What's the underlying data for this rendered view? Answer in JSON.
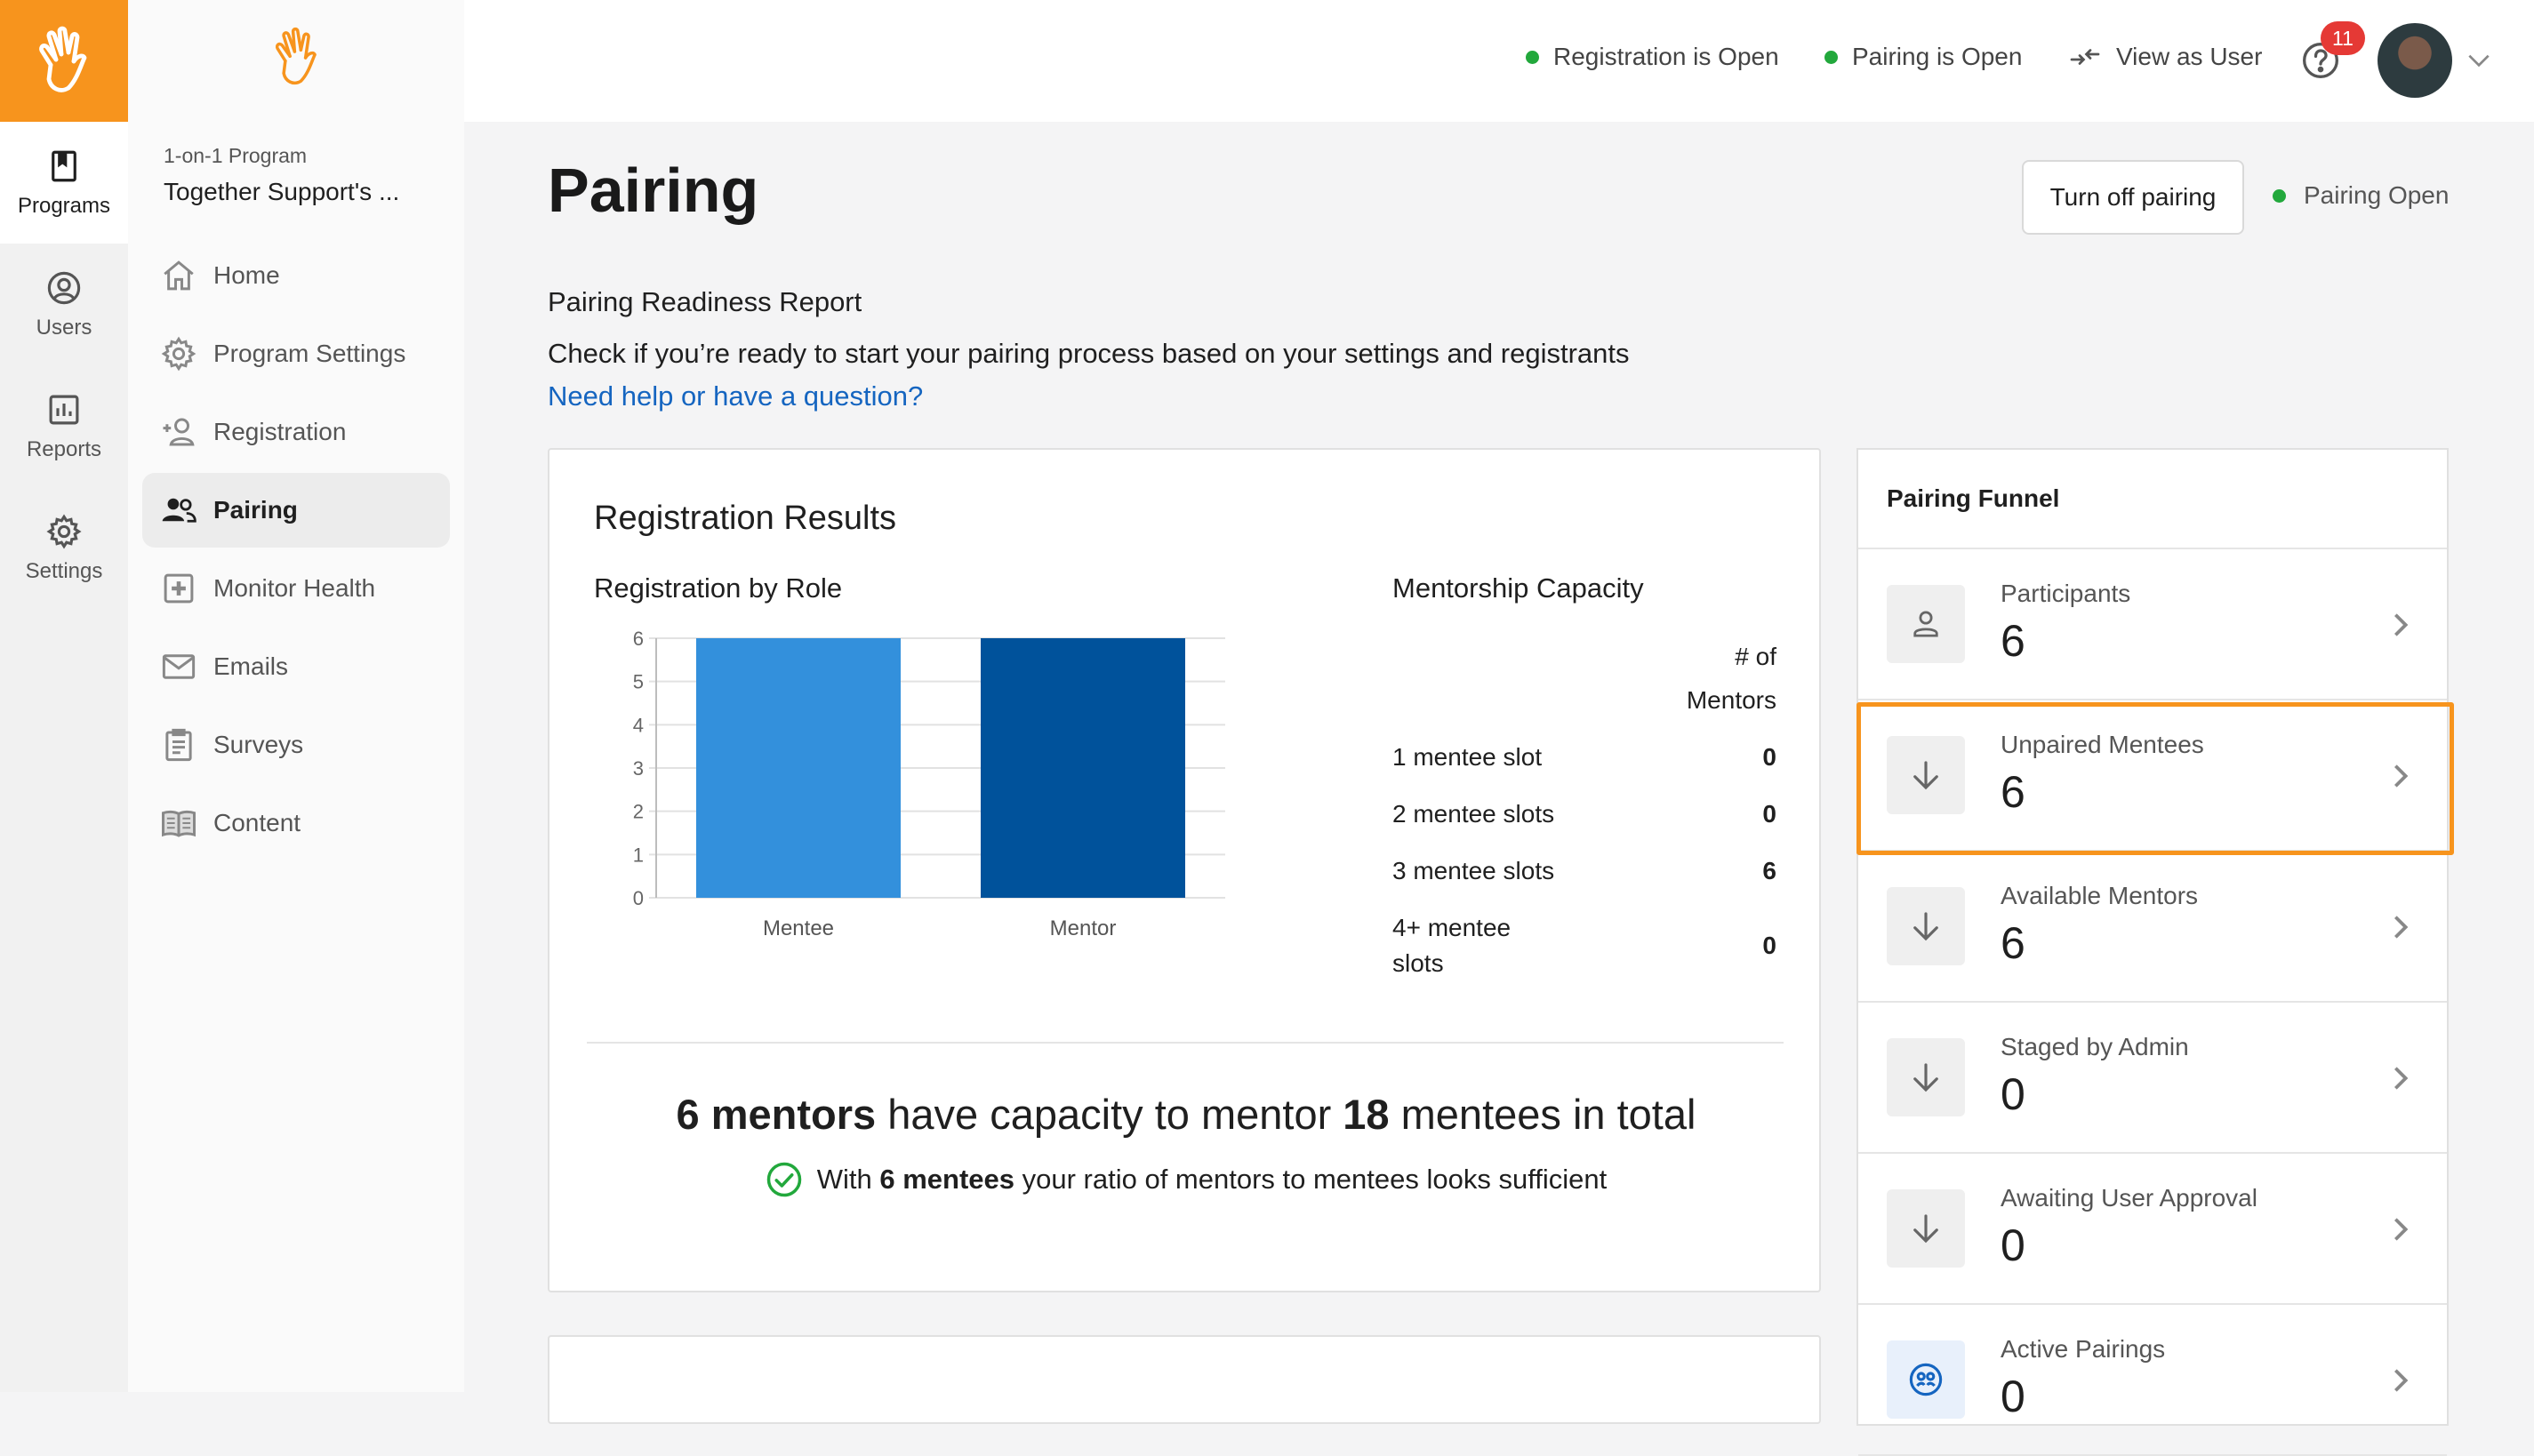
{
  "rail": {
    "items": [
      {
        "label": "Programs",
        "icon": "bookmark-icon",
        "active": true
      },
      {
        "label": "Users",
        "icon": "user-circle-icon",
        "active": false
      },
      {
        "label": "Reports",
        "icon": "bar-chart-icon",
        "active": false
      },
      {
        "label": "Settings",
        "icon": "gear-icon",
        "active": false
      }
    ]
  },
  "sidebar": {
    "program_label": "1-on-1 Program",
    "program_name": "Together Support's ...",
    "items": [
      {
        "label": "Home",
        "icon": "home-icon"
      },
      {
        "label": "Program Settings",
        "icon": "gear-icon"
      },
      {
        "label": "Registration",
        "icon": "add-user-icon"
      },
      {
        "label": "Pairing",
        "icon": "users-icon",
        "active": true
      },
      {
        "label": "Monitor Health",
        "icon": "plus-square-icon"
      },
      {
        "label": "Emails",
        "icon": "mail-icon"
      },
      {
        "label": "Surveys",
        "icon": "clipboard-icon"
      },
      {
        "label": "Content",
        "icon": "book-icon"
      }
    ]
  },
  "topbar": {
    "registration_status": "Registration is Open",
    "pairing_status": "Pairing is Open",
    "view_as_user": "View as User",
    "notification_count": "11",
    "status_color": "#22a83c"
  },
  "page": {
    "title": "Pairing",
    "turn_off_button": "Turn off pairing",
    "pairing_open": "Pairing Open",
    "report_title": "Pairing Readiness Report",
    "report_desc": "Check if you’re ready to start your pairing process based on your settings and registrants",
    "help_link": "Need help or have a question?"
  },
  "results": {
    "title": "Registration Results",
    "chart_title": "Registration by Role",
    "capacity_title": "Mentorship Capacity",
    "capacity_header": "# of Mentors",
    "capacity_rows": [
      {
        "label": "1 mentee slot",
        "value": "0"
      },
      {
        "label": "2 mentee slots",
        "value": "0"
      },
      {
        "label": "3 mentee slots",
        "value": "6"
      },
      {
        "label": "4+ mentee slots",
        "value": "0"
      }
    ],
    "summary": {
      "mentors": "6 mentors",
      "middle": " have capacity to mentor ",
      "mentees": "18",
      "end": " mentees in total"
    },
    "ratio": {
      "start": "With ",
      "bold": "6 mentees",
      "end": " your ratio of mentors to mentees looks sufficient"
    }
  },
  "chart_data": {
    "type": "bar",
    "categories": [
      "Mentee",
      "Mentor"
    ],
    "values": [
      6,
      6
    ],
    "colors": [
      "#3390dc",
      "#00529b"
    ],
    "title": "Registration by Role",
    "xlabel": "",
    "ylabel": "",
    "ylim": [
      0,
      6
    ],
    "yticks": [
      0,
      1,
      2,
      3,
      4,
      5,
      6
    ],
    "grid": true
  },
  "funnel": {
    "title": "Pairing Funnel",
    "items": [
      {
        "label": "Participants",
        "value": "6",
        "icon": "person-icon"
      },
      {
        "label": "Unpaired Mentees",
        "value": "6",
        "icon": "arrow-down-icon",
        "highlighted": true
      },
      {
        "label": "Available Mentors",
        "value": "6",
        "icon": "arrow-down-icon"
      },
      {
        "label": "Staged by Admin",
        "value": "0",
        "icon": "arrow-down-icon"
      },
      {
        "label": "Awaiting User Approval",
        "value": "0",
        "icon": "arrow-down-icon"
      },
      {
        "label": "Active Pairings",
        "value": "0",
        "icon": "pairing-icon"
      }
    ],
    "highlight_color": "#f7941d"
  }
}
